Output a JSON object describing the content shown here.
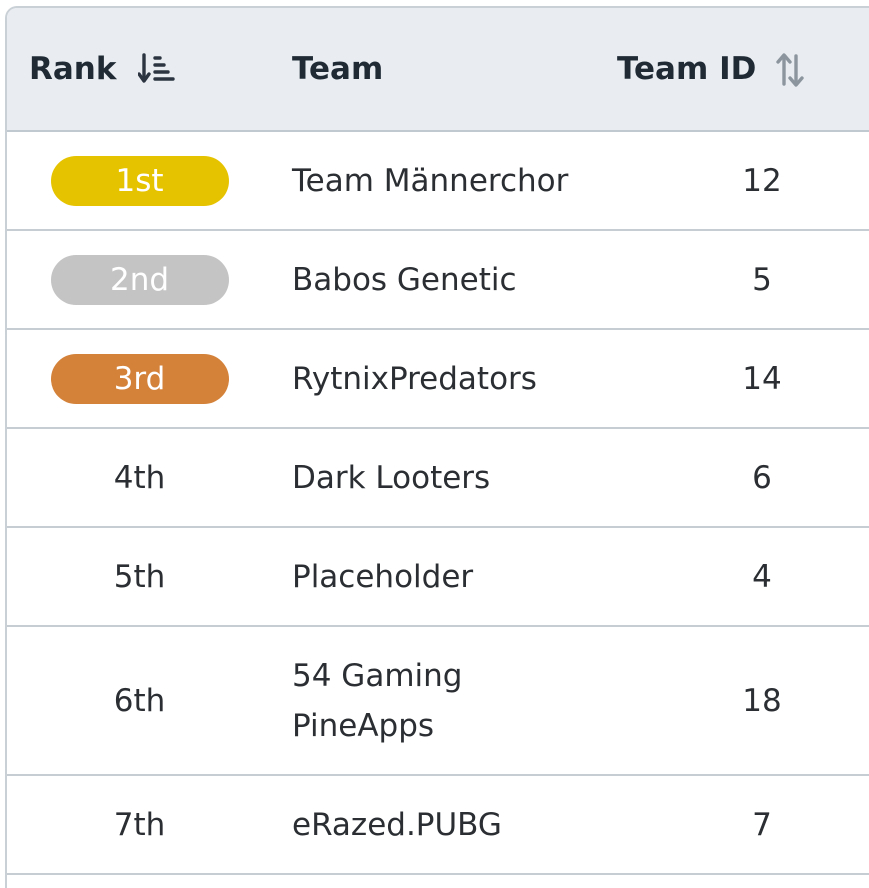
{
  "header": {
    "rank_label": "Rank",
    "team_label": "Team",
    "team_id_label": "Team ID",
    "rank_sort_icon": "sort-ascending-icon",
    "team_id_sort_icon": "sort-icon"
  },
  "colors": {
    "gold": "#e6c300",
    "silver": "#c4c4c4",
    "bronze": "#d4823a",
    "header_bg": "#e9edf2"
  },
  "rows": [
    {
      "rank": "1st",
      "team": "Team Männerchor",
      "team_id": "12",
      "medal": "gold"
    },
    {
      "rank": "2nd",
      "team": "Babos Genetic",
      "team_id": "5",
      "medal": "silver"
    },
    {
      "rank": "3rd",
      "team": "RytnixPredators",
      "team_id": "14",
      "medal": "bronze"
    },
    {
      "rank": "4th",
      "team": "Dark Looters",
      "team_id": "6",
      "medal": ""
    },
    {
      "rank": "5th",
      "team": "Placeholder",
      "team_id": "4",
      "medal": ""
    },
    {
      "rank": "6th",
      "team": "54 Gaming PineApps",
      "team_id": "18",
      "medal": ""
    },
    {
      "rank": "7th",
      "team": "eRazed.PUBG",
      "team_id": "7",
      "medal": ""
    }
  ]
}
